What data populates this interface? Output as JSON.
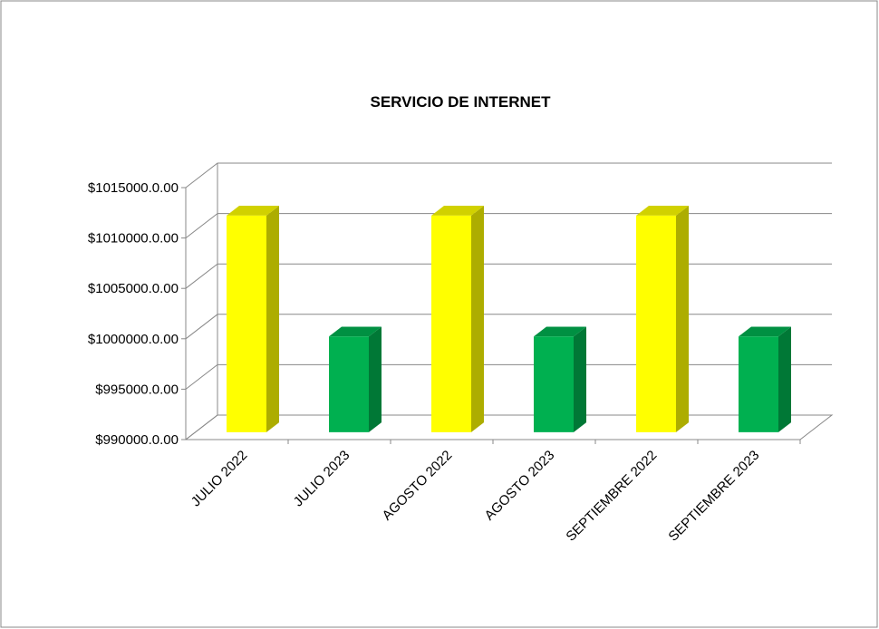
{
  "chart_data": {
    "type": "bar3d",
    "title": "SERVICIO DE INTERNET",
    "categories": [
      "JULIO 2022",
      "JULIO 2023",
      "AGOSTO 2022",
      "AGOSTO 2023",
      "SEPTIEMBRE 2022",
      "SEPTIEMBRE 2023"
    ],
    "values": [
      1011500,
      999500,
      1011500,
      999500,
      1011500,
      999500
    ],
    "colors": [
      "#ffff00",
      "#00b050",
      "#ffff00",
      "#00b050",
      "#ffff00",
      "#00b050"
    ],
    "ylim": [
      990000,
      1015000
    ],
    "yticks": [
      {
        "value": 990000,
        "label": "$990000.0.00"
      },
      {
        "value": 995000,
        "label": "$995000.0.00"
      },
      {
        "value": 1000000,
        "label": "$1000000.0.00"
      },
      {
        "value": 1005000,
        "label": "$1005000.0.00"
      },
      {
        "value": 1010000,
        "label": "$1010000.0.00"
      },
      {
        "value": 1015000,
        "label": "$1015000.0.00"
      }
    ],
    "grid": true
  }
}
